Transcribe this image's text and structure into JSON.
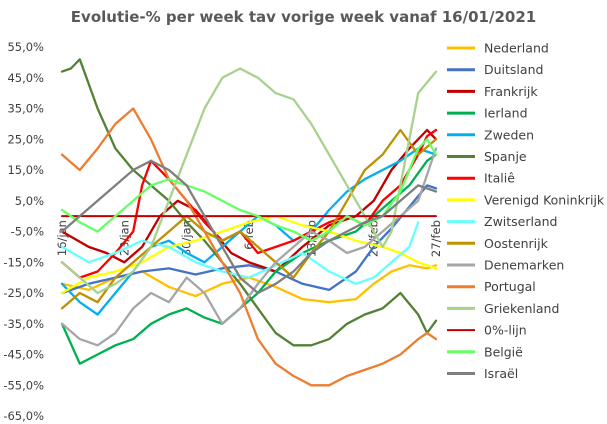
{
  "chart_data": {
    "type": "line",
    "title": "Evolutie-% per week tav vorige week vanaf 16/01/2021",
    "xlabel": "",
    "ylabel": "",
    "ylim": [
      -65,
      55
    ],
    "y_ticks": [
      "55,0%",
      "45,0%",
      "35,0%",
      "25,0%",
      "15,0%",
      "5,0%",
      "-5,0%",
      "-15,0%",
      "-25,0%",
      "-35,0%",
      "-45,0%",
      "-55,0%",
      "-65,0%"
    ],
    "y_tick_values": [
      55,
      45,
      35,
      25,
      15,
      5,
      -5,
      -15,
      -25,
      -35,
      -45,
      -55,
      -65
    ],
    "x_ticks": [
      {
        "label": "16/jan",
        "day": 0
      },
      {
        "label": "23/jan",
        "day": 7
      },
      {
        "label": "30/jan",
        "day": 14
      },
      {
        "label": "6/feb",
        "day": 21
      },
      {
        "label": "13/feb",
        "day": 28
      },
      {
        "label": "20/feb",
        "day": 35
      },
      {
        "label": "27/feb",
        "day": 42
      }
    ],
    "x_range": [
      0,
      42
    ],
    "grid": false,
    "legend_position": "right",
    "series": [
      {
        "name": "Nederland",
        "color": "#FFC000",
        "x": [
          0,
          3,
          6,
          9,
          12,
          15,
          18,
          21,
          24,
          27,
          30,
          33,
          35,
          37,
          39,
          41,
          42
        ],
        "y": [
          -22,
          -24,
          -20,
          -18,
          -23,
          -26,
          -22,
          -20,
          -23,
          -27,
          -28,
          -27,
          -22,
          -18,
          -16,
          -17,
          -16
        ]
      },
      {
        "name": "Duitsland",
        "color": "#4472C4",
        "x": [
          0,
          3,
          6,
          9,
          12,
          15,
          18,
          21,
          24,
          27,
          30,
          33,
          35,
          37,
          39,
          41,
          42
        ],
        "y": [
          -25,
          -22,
          -20,
          -18,
          -17,
          -19,
          -17,
          -16,
          -18,
          -22,
          -24,
          -18,
          -10,
          -4,
          3,
          10,
          9
        ]
      },
      {
        "name": "Frankrijk",
        "color": "#C00000",
        "x": [
          0,
          3,
          5,
          7,
          9,
          11,
          13,
          15,
          17,
          19,
          21,
          24,
          27,
          30,
          33,
          35,
          37,
          39,
          41,
          42
        ],
        "y": [
          -5,
          -10,
          -12,
          -15,
          -10,
          0,
          5,
          2,
          -5,
          -12,
          -15,
          -18,
          -10,
          -3,
          0,
          5,
          15,
          22,
          28,
          25
        ]
      },
      {
        "name": "Ierland",
        "color": "#00B050",
        "x": [
          0,
          2,
          4,
          6,
          8,
          10,
          12,
          14,
          16,
          18,
          20,
          22,
          24,
          27,
          30,
          33,
          35,
          37,
          39,
          41,
          42
        ],
        "y": [
          -35,
          -48,
          -45,
          -42,
          -40,
          -35,
          -32,
          -30,
          -33,
          -35,
          -30,
          -25,
          -18,
          -12,
          -8,
          -5,
          0,
          5,
          10,
          18,
          20
        ]
      },
      {
        "name": "Zweden",
        "color": "#00B0F0",
        "x": [
          0,
          2,
          4,
          6,
          8,
          10,
          12,
          14,
          16,
          18,
          20,
          22,
          24,
          26,
          28,
          30,
          32,
          34,
          36,
          38,
          40,
          42
        ],
        "y": [
          -22,
          -28,
          -32,
          -25,
          -18,
          -10,
          -8,
          -12,
          -15,
          -10,
          -5,
          0,
          -3,
          -8,
          -5,
          2,
          8,
          12,
          15,
          18,
          22,
          20
        ]
      },
      {
        "name": "Spanje",
        "color": "#548235",
        "x": [
          0,
          1,
          2,
          4,
          6,
          8,
          10,
          12,
          14,
          16,
          18,
          20,
          22,
          24,
          26,
          28,
          30,
          32,
          34,
          36,
          38,
          40,
          41,
          42
        ],
        "y": [
          47,
          48,
          51,
          35,
          22,
          15,
          10,
          5,
          -2,
          -8,
          -15,
          -22,
          -30,
          -38,
          -42,
          -42,
          -40,
          -35,
          -32,
          -30,
          -25,
          -32,
          -38,
          -34
        ]
      },
      {
        "name": "Italiê",
        "color": "#FF0000",
        "x": [
          0,
          2,
          4,
          6,
          8,
          9,
          10,
          12,
          14,
          16,
          18,
          20,
          22,
          24,
          26,
          28,
          30,
          32,
          34,
          36,
          38,
          40,
          41,
          42
        ],
        "y": [
          -15,
          -20,
          -18,
          -12,
          -5,
          10,
          18,
          12,
          5,
          -2,
          -8,
          -5,
          -12,
          -10,
          -8,
          -5,
          -2,
          0,
          -3,
          5,
          10,
          20,
          26,
          28
        ]
      },
      {
        "name": "Verenigd Koninkrijk",
        "color": "#FFFF00",
        "x": [
          0,
          3,
          6,
          9,
          12,
          15,
          18,
          21,
          24,
          27,
          30,
          33,
          36,
          38,
          40,
          42
        ],
        "y": [
          -25,
          -20,
          -18,
          -15,
          -10,
          -8,
          -5,
          -2,
          0,
          -3,
          -5,
          -8,
          -10,
          -12,
          -15,
          -17
        ]
      },
      {
        "name": "Zwitserland",
        "color": "#66FFFF",
        "x": [
          0,
          3,
          6,
          9,
          12,
          15,
          18,
          21,
          24,
          27,
          30,
          33,
          35,
          37,
          39,
          40
        ],
        "y": [
          -10,
          -15,
          -12,
          -8,
          -10,
          -15,
          -18,
          -20,
          -16,
          -12,
          -18,
          -22,
          -20,
          -15,
          -10,
          -2
        ]
      },
      {
        "name": "Oostenrijk",
        "color": "#BF9000",
        "x": [
          0,
          2,
          4,
          6,
          8,
          10,
          12,
          14,
          16,
          18,
          20,
          22,
          24,
          26,
          28,
          30,
          32,
          34,
          36,
          38,
          40,
          42
        ],
        "y": [
          -30,
          -25,
          -28,
          -20,
          -15,
          -10,
          -5,
          0,
          -5,
          -8,
          -5,
          -10,
          -15,
          -20,
          -12,
          -5,
          5,
          15,
          20,
          28,
          20,
          25
        ]
      },
      {
        "name": "Denemarken",
        "color": "#A6A6A6",
        "x": [
          0,
          2,
          4,
          6,
          8,
          10,
          12,
          14,
          16,
          18,
          20,
          22,
          24,
          26,
          28,
          30,
          32,
          34,
          36,
          38,
          40,
          42
        ],
        "y": [
          -35,
          -40,
          -42,
          -38,
          -30,
          -25,
          -28,
          -20,
          -25,
          -35,
          -30,
          -22,
          -15,
          -10,
          -5,
          -8,
          -12,
          -10,
          -5,
          0,
          5,
          22
        ]
      },
      {
        "name": "Portugal",
        "color": "#ED7D31",
        "x": [
          0,
          2,
          4,
          6,
          8,
          10,
          12,
          14,
          16,
          18,
          20,
          22,
          24,
          26,
          28,
          30,
          32,
          34,
          36,
          38,
          40,
          41,
          42
        ],
        "y": [
          20,
          15,
          22,
          30,
          35,
          25,
          12,
          5,
          -5,
          -15,
          -25,
          -40,
          -48,
          -52,
          -55,
          -55,
          -52,
          -50,
          -48,
          -45,
          -40,
          -38,
          -40
        ]
      },
      {
        "name": "Griekenland",
        "color": "#A9D18E",
        "x": [
          0,
          2,
          4,
          6,
          8,
          10,
          12,
          14,
          16,
          18,
          20,
          22,
          24,
          26,
          28,
          30,
          32,
          34,
          36,
          37,
          38,
          40,
          42
        ],
        "y": [
          -15,
          -20,
          -25,
          -22,
          -18,
          -10,
          5,
          20,
          35,
          45,
          48,
          45,
          40,
          38,
          30,
          20,
          10,
          0,
          -10,
          -5,
          10,
          40,
          47
        ]
      },
      {
        "name": "0%-lijn",
        "color": "#C00000",
        "x": [
          0,
          42
        ],
        "y": [
          0,
          0
        ]
      },
      {
        "name": "België",
        "color": "#66FF66",
        "x": [
          0,
          2,
          4,
          6,
          8,
          10,
          12,
          14,
          16,
          18,
          20,
          22,
          24,
          26,
          28,
          30,
          32,
          34,
          36,
          38,
          40,
          41,
          42
        ],
        "y": [
          2,
          -2,
          -5,
          0,
          5,
          10,
          12,
          10,
          8,
          5,
          2,
          0,
          -3,
          -5,
          -8,
          -5,
          0,
          -3,
          0,
          8,
          22,
          25,
          20
        ]
      },
      {
        "name": "Israël",
        "color": "#7F7F7F",
        "x": [
          0,
          2,
          4,
          6,
          8,
          10,
          12,
          14,
          16,
          18,
          20,
          22,
          24,
          26,
          28,
          30,
          32,
          34,
          36,
          38,
          40,
          42
        ],
        "y": [
          -5,
          0,
          5,
          10,
          15,
          18,
          15,
          10,
          0,
          -10,
          -20,
          -25,
          -22,
          -18,
          -12,
          -8,
          -5,
          -2,
          0,
          5,
          10,
          8
        ]
      }
    ]
  }
}
